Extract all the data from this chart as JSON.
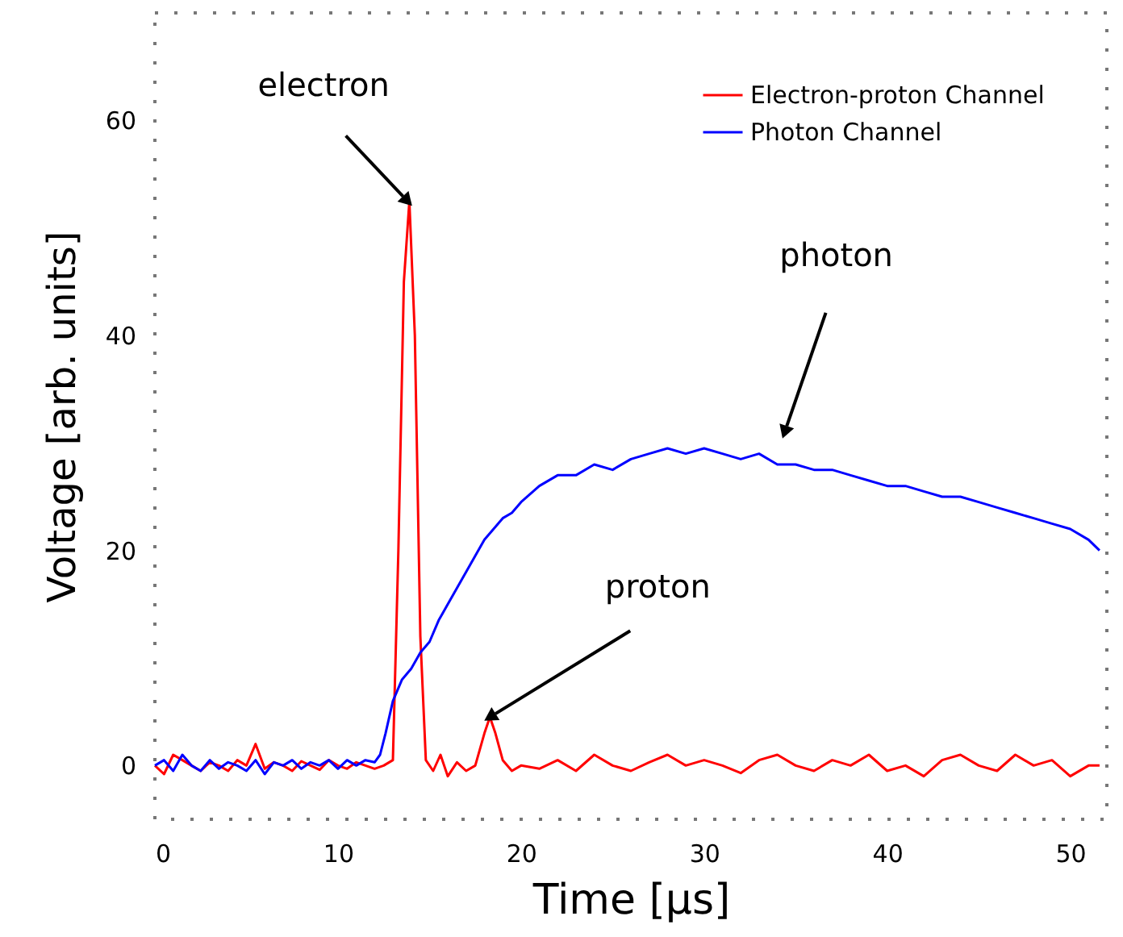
{
  "chart_data": {
    "type": "line",
    "xlabel": "Time [µs]",
    "ylabel": "Voltage [arb. units]",
    "xlim": [
      0,
      52
    ],
    "ylim": [
      -5,
      70
    ],
    "xticks": [
      0,
      10,
      20,
      30,
      40,
      50
    ],
    "yticks": [
      0,
      20,
      40,
      60
    ],
    "legend": "top right",
    "grid": false,
    "marker": "none",
    "line_style": "solid",
    "series": [
      {
        "name": "Electron-proton Channel",
        "color": "#ff0000",
        "x": [
          0,
          0.5,
          1,
          1.5,
          2,
          2.5,
          3,
          3.5,
          4,
          4.5,
          5,
          5.5,
          6,
          6.5,
          7,
          7.5,
          8,
          8.5,
          9,
          9.5,
          10,
          10.5,
          11,
          11.5,
          12,
          12.5,
          13,
          13.3,
          13.6,
          13.9,
          14.2,
          14.5,
          14.8,
          15.2,
          15.6,
          16,
          16.5,
          17,
          17.5,
          18,
          18.3,
          18.6,
          19,
          19.5,
          20,
          21,
          22,
          23,
          24,
          25,
          26,
          27,
          28,
          29,
          30,
          31,
          32,
          33,
          34,
          35,
          36,
          37,
          38,
          39,
          40,
          41,
          42,
          43,
          44,
          45,
          46,
          47,
          48,
          49,
          50,
          51,
          51.6
        ],
        "values": [
          0,
          -0.8,
          1,
          0.5,
          0,
          -0.5,
          0.3,
          0,
          -0.5,
          0.5,
          0,
          2,
          -0.3,
          0.3,
          0,
          -0.5,
          0.4,
          0,
          -0.4,
          0.5,
          0,
          -0.3,
          0.3,
          0,
          -0.3,
          0,
          0.5,
          20,
          45,
          52.5,
          40,
          12,
          0.5,
          -0.5,
          1,
          -1,
          0.3,
          -0.5,
          0,
          3,
          4.5,
          3,
          0.5,
          -0.5,
          0,
          -0.3,
          0.5,
          -0.5,
          1,
          0,
          -0.5,
          0.3,
          1,
          0,
          0.5,
          0,
          -0.7,
          0.5,
          1,
          0,
          -0.5,
          0.5,
          0,
          1,
          -0.5,
          0,
          -1,
          0.5,
          1,
          0,
          -0.5,
          1,
          0,
          0.5,
          -1,
          0,
          0
        ]
      },
      {
        "name": "Photon Channel",
        "color": "#0000ff",
        "x": [
          0,
          0.5,
          1,
          1.5,
          2,
          2.5,
          3,
          3.5,
          4,
          4.5,
          5,
          5.5,
          6,
          6.5,
          7,
          7.5,
          8,
          8.5,
          9,
          9.5,
          10,
          10.5,
          11,
          11.5,
          12,
          12.3,
          12.6,
          13,
          13.5,
          14,
          14.5,
          15,
          15.5,
          16,
          16.5,
          17,
          17.5,
          18,
          18.5,
          19,
          19.5,
          20,
          21,
          22,
          23,
          24,
          25,
          26,
          27,
          28,
          29,
          30,
          31,
          32,
          33,
          34,
          35,
          36,
          37,
          38,
          39,
          40,
          41,
          42,
          43,
          44,
          45,
          46,
          47,
          48,
          49,
          50,
          51,
          51.6
        ],
        "values": [
          0,
          0.5,
          -0.5,
          1,
          0,
          -0.5,
          0.5,
          -0.3,
          0.3,
          0,
          -0.5,
          0.5,
          -0.8,
          0.3,
          0,
          0.5,
          -0.3,
          0.3,
          0,
          0.5,
          -0.3,
          0.5,
          0,
          0.5,
          0.3,
          1,
          3,
          6,
          8,
          9,
          10.5,
          11.5,
          13.5,
          15,
          16.5,
          18,
          19.5,
          21,
          22,
          23,
          23.5,
          24.5,
          26,
          27,
          27,
          28,
          27.5,
          28.5,
          29,
          29.5,
          29,
          29.5,
          29,
          28.5,
          29,
          28,
          28,
          27.5,
          27.5,
          27,
          26.5,
          26,
          26,
          25.5,
          25,
          25,
          24.5,
          24,
          23.5,
          23,
          22.5,
          22,
          21,
          20
        ]
      }
    ],
    "annotations": [
      {
        "text": "electron",
        "x": 13.8,
        "y": 52.5
      },
      {
        "text": "photon",
        "x": 34.4,
        "y": 31
      },
      {
        "text": "proton",
        "x": 18.3,
        "y": 4.5
      }
    ]
  }
}
